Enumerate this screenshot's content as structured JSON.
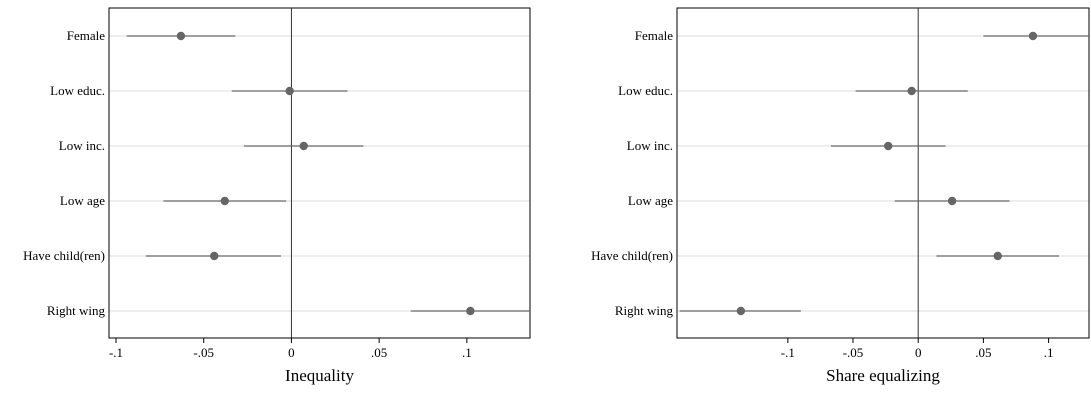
{
  "chart_data": [
    {
      "type": "scatter",
      "subtype": "coefficient-plot",
      "xlabel": "Inequality",
      "categories": [
        "Female",
        "Low educ.",
        "Low inc.",
        "Low age",
        "Have child(ren)",
        "Right wing"
      ],
      "estimates": [
        -0.063,
        -0.001,
        0.007,
        -0.038,
        -0.044,
        0.102
      ],
      "ci_low": [
        -0.094,
        -0.034,
        -0.027,
        -0.073,
        -0.083,
        0.068
      ],
      "ci_high": [
        -0.032,
        0.032,
        0.041,
        -0.003,
        -0.006,
        0.136
      ],
      "xticks": [
        -0.1,
        -0.05,
        0,
        0.05,
        0.1
      ],
      "xtick_labels": [
        "-.1",
        "-.05",
        "0",
        ".05",
        ".1"
      ],
      "xlim": [
        -0.104,
        0.136
      ],
      "reference_line": 0,
      "grid": "horizontal"
    },
    {
      "type": "scatter",
      "subtype": "coefficient-plot",
      "xlabel": "Share equalizing",
      "categories": [
        "Female",
        "Low educ.",
        "Low inc.",
        "Low age",
        "Have child(ren)",
        "Right wing"
      ],
      "estimates": [
        0.088,
        -0.005,
        -0.023,
        0.026,
        0.061,
        -0.136
      ],
      "ci_low": [
        0.05,
        -0.048,
        -0.067,
        -0.018,
        0.014,
        -0.183
      ],
      "ci_high": [
        0.131,
        0.038,
        0.021,
        0.07,
        0.108,
        -0.09
      ],
      "xticks": [
        -0.1,
        -0.05,
        0,
        0.05,
        0.1
      ],
      "xtick_labels": [
        "-.1",
        "-.05",
        "0",
        ".05",
        ".1"
      ],
      "xlim": [
        -0.185,
        0.131
      ],
      "reference_line": 0,
      "grid": "horizontal"
    }
  ],
  "colors": {
    "marker": "#666666",
    "ci_line": "#666666",
    "grid": "#dddddd",
    "frame": "#000000"
  }
}
